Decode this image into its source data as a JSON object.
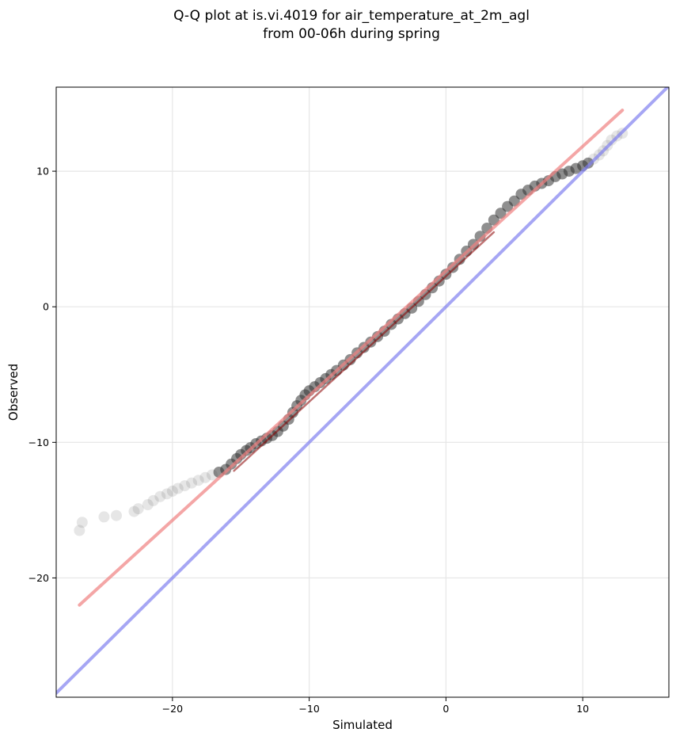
{
  "chart_data": {
    "type": "scatter",
    "title_line1": "Q-Q plot at is.vi.4019 for air_temperature_at_2m_agl",
    "title_line2": "from 00-06h during spring",
    "xlabel": "Simulated",
    "ylabel": "Observed",
    "xlim": [
      -28.5,
      16.3
    ],
    "ylim": [
      -28.8,
      16.2
    ],
    "xticks": [
      -20,
      -10,
      0,
      10
    ],
    "yticks": [
      -20,
      -10,
      0,
      10
    ],
    "xtick_labels": [
      "−20",
      "−10",
      "0",
      "10"
    ],
    "ytick_labels": [
      "−20",
      "−10",
      "0",
      "10"
    ],
    "grid": true,
    "colors": {
      "points": "#333333",
      "fit_line": "#f08080",
      "fit_line_inner": "#8b0000",
      "identity_line": "#8080f0"
    },
    "identity_line": {
      "x": [
        -28.5,
        16.3
      ],
      "y": [
        -28.5,
        16.3
      ]
    },
    "fit_line": {
      "x": [
        -26.8,
        12.9
      ],
      "y": [
        -22.0,
        14.5
      ]
    },
    "fit_inner_segment": {
      "x": [
        -15.5,
        3.5
      ],
      "y": [
        -12.1,
        5.5
      ]
    },
    "series": [
      {
        "x": [
          -26.8,
          -26.6,
          -25.0,
          -24.1,
          -22.8,
          -22.5,
          -21.8,
          -21.4,
          -20.9,
          -20.4,
          -20.0,
          -19.6,
          -19.1,
          -18.6,
          -18.1,
          -17.6,
          -17.1,
          -16.6,
          -16.1,
          -15.7,
          -15.3,
          -15.0,
          -14.6,
          -14.3,
          -13.9,
          -13.5,
          -13.1,
          -12.7,
          -12.3,
          -11.9,
          -11.5,
          -11.2,
          -10.9,
          -10.6,
          -10.3,
          -10.0,
          -9.6,
          -9.2,
          -8.8,
          -8.4,
          -8.0,
          -7.5,
          -7.0,
          -6.5,
          -6.0,
          -5.5,
          -5.0,
          -4.5,
          -4.0,
          -3.5,
          -3.0,
          -2.5,
          -2.0,
          -1.5,
          -1.0,
          -0.5,
          0.0,
          0.5,
          1.0,
          1.5,
          2.0,
          2.5,
          3.0,
          3.5,
          4.0,
          4.5,
          5.0,
          5.5,
          6.0,
          6.5,
          7.0,
          7.5,
          8.0,
          8.5,
          9.0,
          9.5,
          10.0,
          10.4,
          10.8,
          11.2,
          11.5,
          11.8,
          12.1,
          12.5,
          12.9
        ],
        "y": [
          -16.5,
          -15.9,
          -15.5,
          -15.4,
          -15.1,
          -14.9,
          -14.6,
          -14.3,
          -14.0,
          -13.8,
          -13.6,
          -13.4,
          -13.2,
          -13.0,
          -12.8,
          -12.6,
          -12.4,
          -12.2,
          -12.0,
          -11.6,
          -11.2,
          -10.9,
          -10.6,
          -10.4,
          -10.1,
          -9.9,
          -9.7,
          -9.5,
          -9.2,
          -8.8,
          -8.3,
          -7.8,
          -7.3,
          -6.9,
          -6.5,
          -6.2,
          -5.9,
          -5.6,
          -5.3,
          -5.0,
          -4.7,
          -4.3,
          -3.9,
          -3.4,
          -3.0,
          -2.6,
          -2.2,
          -1.8,
          -1.3,
          -0.9,
          -0.5,
          -0.1,
          0.4,
          0.9,
          1.4,
          1.9,
          2.4,
          2.9,
          3.5,
          4.1,
          4.6,
          5.2,
          5.8,
          6.4,
          6.9,
          7.4,
          7.8,
          8.3,
          8.6,
          8.9,
          9.1,
          9.3,
          9.6,
          9.8,
          10.0,
          10.2,
          10.4,
          10.6,
          10.9,
          11.2,
          11.5,
          11.9,
          12.3,
          12.6,
          12.8
        ]
      }
    ]
  }
}
